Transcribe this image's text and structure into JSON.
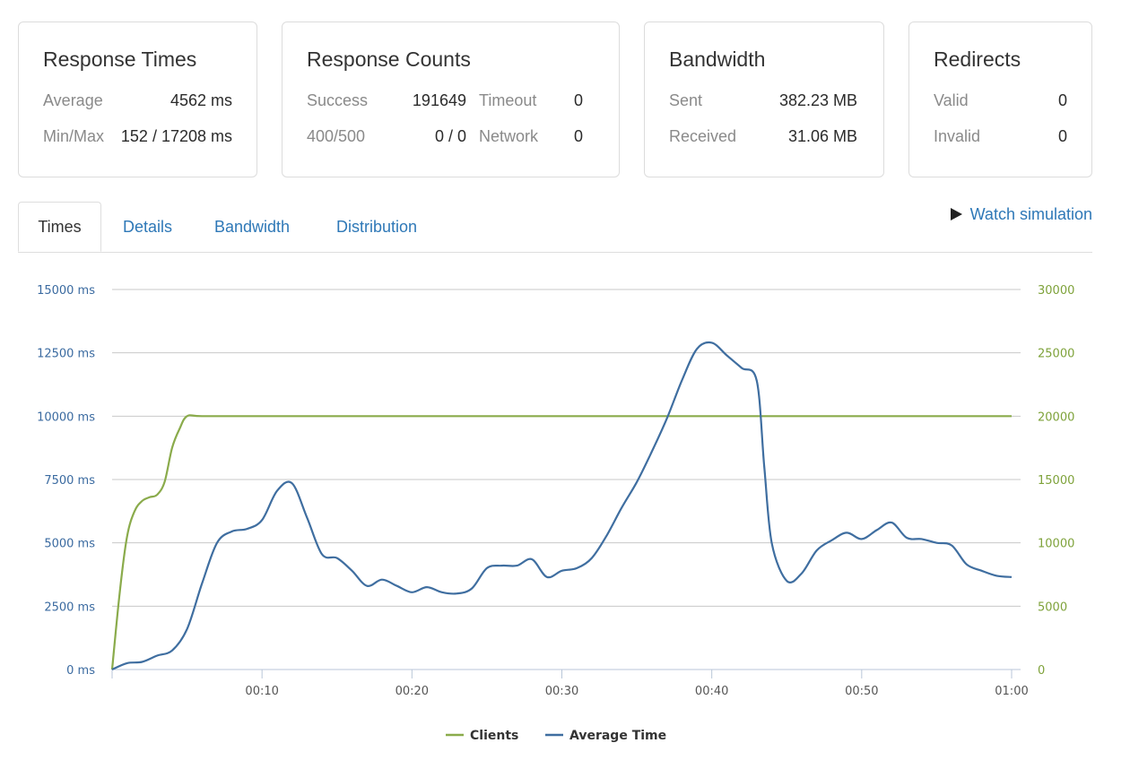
{
  "cards": {
    "response_times": {
      "title": "Response Times",
      "average_label": "Average",
      "average_value": "4562 ms",
      "minmax_label": "Min/Max",
      "minmax_value": "152 / 17208 ms"
    },
    "response_counts": {
      "title": "Response Counts",
      "success_label": "Success",
      "success_value": "191649",
      "timeout_label": "Timeout",
      "timeout_value": "0",
      "errors_label": "400/500",
      "errors_value": "0 / 0",
      "network_label": "Network",
      "network_value": "0"
    },
    "bandwidth": {
      "title": "Bandwidth",
      "sent_label": "Sent",
      "sent_value": "382.23 MB",
      "received_label": "Received",
      "received_value": "31.06 MB"
    },
    "redirects": {
      "title": "Redirects",
      "valid_label": "Valid",
      "valid_value": "0",
      "invalid_label": "Invalid",
      "invalid_value": "0"
    }
  },
  "tabs": [
    "Times",
    "Details",
    "Bandwidth",
    "Distribution"
  ],
  "watch_label": "Watch simulation",
  "colors": {
    "clients": "#8aab4b",
    "average_time": "#3f6ea0",
    "grid": "#c8c8c8"
  },
  "chart_data": {
    "type": "line",
    "x_unit": "seconds",
    "x_ticks": [
      "00:10",
      "00:20",
      "00:30",
      "00:40",
      "00:50",
      "01:00"
    ],
    "x_tick_values": [
      10,
      20,
      30,
      40,
      50,
      60
    ],
    "xlim": [
      0,
      60
    ],
    "y_left_ticks": [
      "0 ms",
      "2500 ms",
      "5000 ms",
      "7500 ms",
      "10000 ms",
      "12500 ms",
      "15000 ms"
    ],
    "y_left_ylim": [
      0,
      15000
    ],
    "y_right_ticks": [
      "0",
      "5000",
      "10000",
      "15000",
      "20000",
      "25000",
      "30000"
    ],
    "y_right_ylim": [
      0,
      30000
    ],
    "grid": true,
    "legend_position": "bottom",
    "series": [
      {
        "name": "Clients",
        "axis": "right",
        "x": [
          0,
          0.5,
          1,
          1.5,
          2,
          2.5,
          3,
          3.5,
          4,
          4.5,
          5,
          6,
          10,
          20,
          30,
          40,
          50,
          60
        ],
        "values": [
          0,
          6000,
          10500,
          12500,
          13300,
          13600,
          13800,
          14800,
          17500,
          19000,
          20000,
          20000,
          20000,
          20000,
          20000,
          20000,
          20000,
          20000
        ]
      },
      {
        "name": "Average Time",
        "axis": "left",
        "x": [
          0,
          1,
          2,
          3,
          4,
          5,
          6,
          7,
          8,
          9,
          10,
          11,
          12,
          13,
          14,
          15,
          16,
          17,
          18,
          19,
          20,
          21,
          22,
          23,
          24,
          25,
          26,
          27,
          28,
          29,
          30,
          31,
          32,
          33,
          34,
          35,
          36,
          37,
          38,
          39,
          40,
          41,
          42,
          43,
          43.5,
          44,
          45,
          46,
          47,
          48,
          49,
          50,
          51,
          52,
          53,
          54,
          55,
          56,
          57,
          58,
          59,
          60
        ],
        "values": [
          0,
          250,
          300,
          550,
          750,
          1600,
          3400,
          5000,
          5450,
          5550,
          5900,
          7050,
          7350,
          6000,
          4550,
          4400,
          3900,
          3300,
          3550,
          3300,
          3050,
          3250,
          3050,
          3000,
          3200,
          4000,
          4100,
          4100,
          4350,
          3650,
          3900,
          4000,
          4400,
          5300,
          6400,
          7400,
          8600,
          9900,
          11400,
          12650,
          12900,
          12400,
          11900,
          11400,
          8000,
          5000,
          3500,
          3800,
          4700,
          5100,
          5400,
          5150,
          5500,
          5800,
          5200,
          5150,
          5000,
          4900,
          4150,
          3900,
          3700,
          3650
        ]
      }
    ]
  }
}
